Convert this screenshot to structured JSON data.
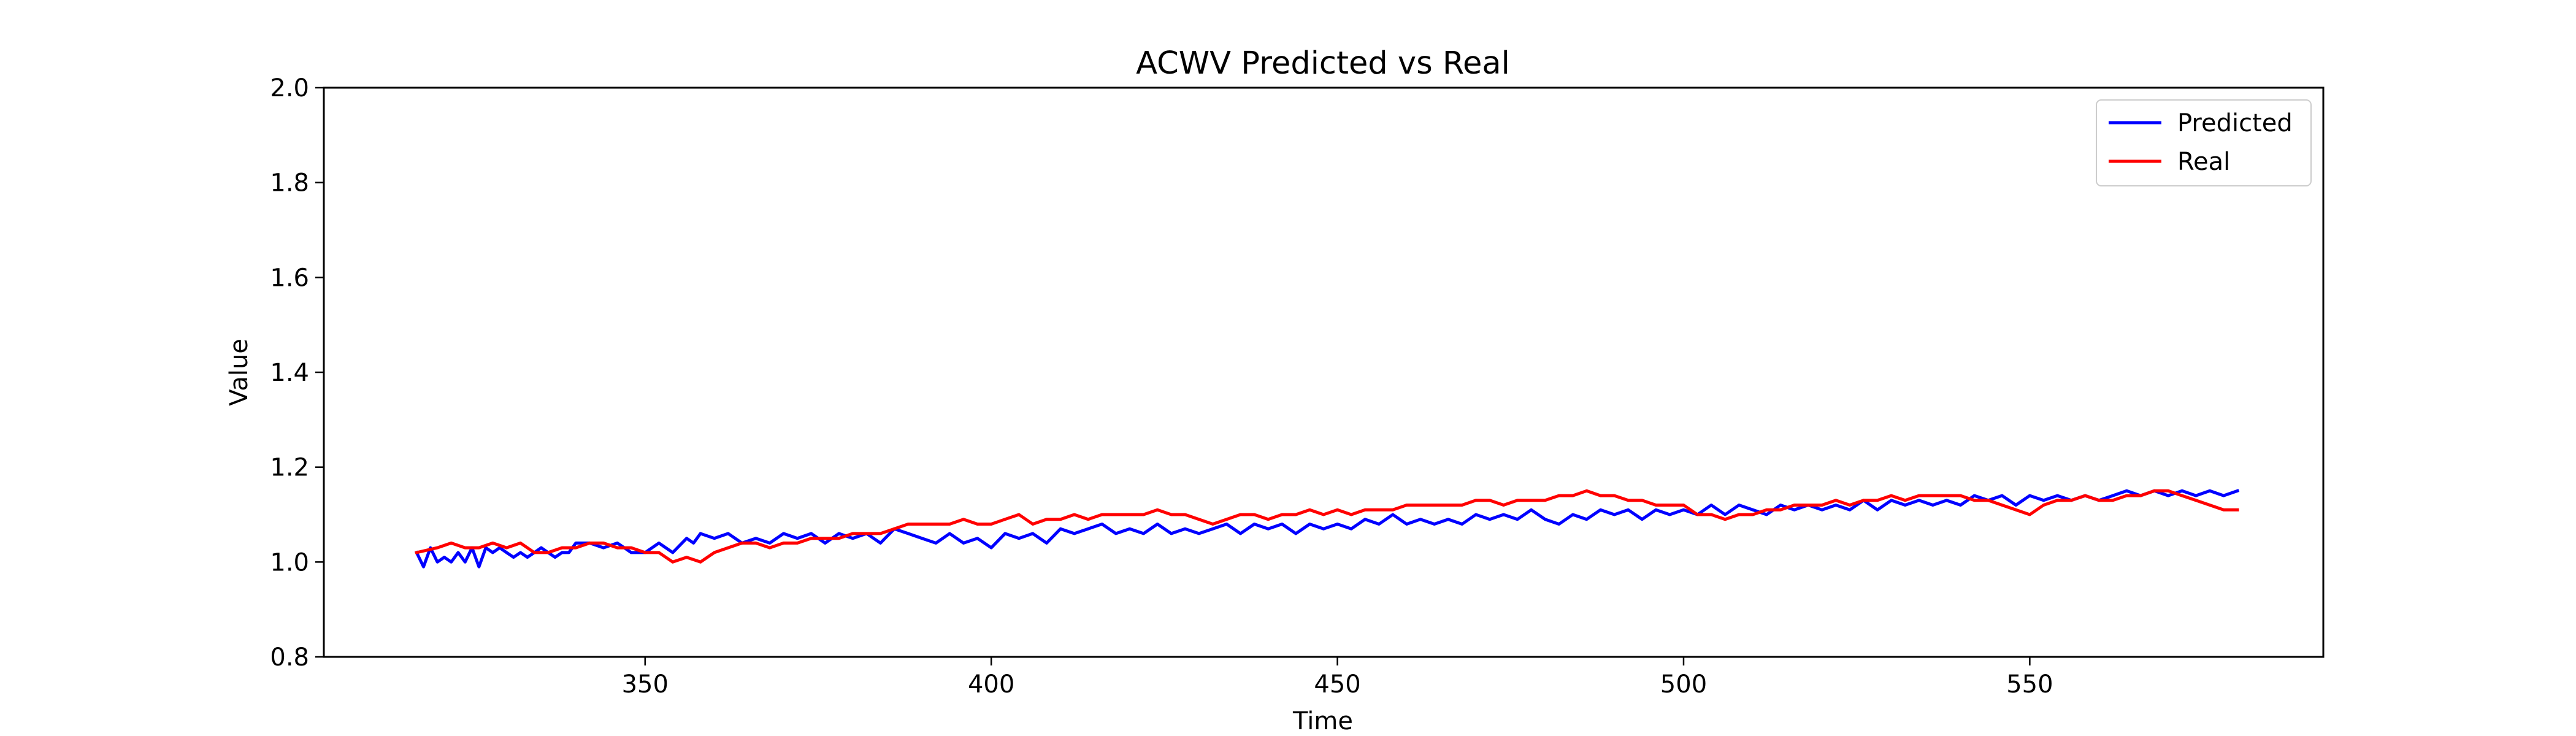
{
  "chart_data": {
    "type": "line",
    "title": "ACWV Predicted vs Real",
    "xlabel": "Time",
    "ylabel": "Value",
    "xlim": [
      303.6,
      592.4
    ],
    "ylim": [
      0.8,
      2.0
    ],
    "xticks": [
      350,
      400,
      450,
      500,
      550
    ],
    "yticks": [
      0.8,
      1.0,
      1.2,
      1.4,
      1.6,
      1.8,
      2.0
    ],
    "xtick_labels": [
      "350",
      "400",
      "450",
      "500",
      "550"
    ],
    "ytick_labels": [
      "0.8",
      "1.0",
      "1.2",
      "1.4",
      "1.6",
      "1.8",
      "2.0"
    ],
    "grid": false,
    "legend_position": "top-right",
    "series": [
      {
        "name": "Predicted",
        "color": "#0000ff",
        "x": [
          317,
          318,
          319,
          320,
          321,
          322,
          323,
          324,
          325,
          326,
          327,
          328,
          329,
          330,
          331,
          332,
          333,
          334,
          335,
          336,
          337,
          338,
          339,
          340,
          342,
          344,
          346,
          348,
          350,
          352,
          354,
          356,
          357,
          358,
          360,
          362,
          364,
          366,
          368,
          370,
          372,
          374,
          376,
          378,
          380,
          382,
          384,
          386,
          388,
          390,
          392,
          394,
          396,
          398,
          400,
          402,
          404,
          406,
          408,
          410,
          412,
          414,
          416,
          418,
          420,
          422,
          424,
          426,
          428,
          430,
          432,
          434,
          436,
          438,
          440,
          442,
          444,
          446,
          448,
          450,
          452,
          454,
          456,
          458,
          460,
          462,
          464,
          466,
          468,
          470,
          472,
          474,
          476,
          478,
          480,
          482,
          484,
          486,
          488,
          490,
          492,
          494,
          496,
          498,
          500,
          502,
          504,
          506,
          508,
          510,
          512,
          514,
          516,
          518,
          520,
          522,
          524,
          526,
          528,
          530,
          532,
          534,
          536,
          538,
          540,
          542,
          544,
          546,
          548,
          550,
          552,
          554,
          556,
          558,
          560,
          562,
          564,
          566,
          568,
          570,
          572,
          574,
          576,
          578,
          580
        ],
        "y": [
          1.02,
          0.99,
          1.03,
          1.0,
          1.01,
          1.0,
          1.02,
          1.0,
          1.03,
          0.99,
          1.03,
          1.02,
          1.03,
          1.02,
          1.01,
          1.02,
          1.01,
          1.02,
          1.03,
          1.02,
          1.01,
          1.02,
          1.02,
          1.04,
          1.04,
          1.03,
          1.04,
          1.02,
          1.02,
          1.04,
          1.02,
          1.05,
          1.04,
          1.06,
          1.05,
          1.06,
          1.04,
          1.05,
          1.04,
          1.06,
          1.05,
          1.06,
          1.04,
          1.06,
          1.05,
          1.06,
          1.04,
          1.07,
          1.06,
          1.05,
          1.04,
          1.06,
          1.04,
          1.05,
          1.03,
          1.06,
          1.05,
          1.06,
          1.04,
          1.07,
          1.06,
          1.07,
          1.08,
          1.06,
          1.07,
          1.06,
          1.08,
          1.06,
          1.07,
          1.06,
          1.07,
          1.08,
          1.06,
          1.08,
          1.07,
          1.08,
          1.06,
          1.08,
          1.07,
          1.08,
          1.07,
          1.09,
          1.08,
          1.1,
          1.08,
          1.09,
          1.08,
          1.09,
          1.08,
          1.1,
          1.09,
          1.1,
          1.09,
          1.11,
          1.09,
          1.08,
          1.1,
          1.09,
          1.11,
          1.1,
          1.11,
          1.09,
          1.11,
          1.1,
          1.11,
          1.1,
          1.12,
          1.1,
          1.12,
          1.11,
          1.1,
          1.12,
          1.11,
          1.12,
          1.11,
          1.12,
          1.11,
          1.13,
          1.11,
          1.13,
          1.12,
          1.13,
          1.12,
          1.13,
          1.12,
          1.14,
          1.13,
          1.14,
          1.12,
          1.14,
          1.13,
          1.14,
          1.13,
          1.14,
          1.13,
          1.14,
          1.15,
          1.14,
          1.15,
          1.14,
          1.15,
          1.14,
          1.15,
          1.14,
          1.15
        ]
      },
      {
        "name": "Real",
        "color": "#ff0000",
        "x": [
          317,
          320,
          322,
          324,
          326,
          328,
          330,
          332,
          334,
          336,
          338,
          340,
          342,
          344,
          346,
          348,
          350,
          352,
          354,
          356,
          358,
          360,
          362,
          364,
          366,
          368,
          370,
          372,
          374,
          376,
          378,
          380,
          382,
          384,
          386,
          388,
          390,
          392,
          394,
          396,
          398,
          400,
          402,
          404,
          406,
          408,
          410,
          412,
          414,
          416,
          418,
          420,
          422,
          424,
          426,
          428,
          430,
          432,
          434,
          436,
          438,
          440,
          442,
          444,
          446,
          448,
          450,
          452,
          454,
          456,
          458,
          460,
          462,
          464,
          466,
          468,
          470,
          472,
          474,
          476,
          478,
          480,
          482,
          484,
          486,
          488,
          490,
          492,
          494,
          496,
          498,
          500,
          502,
          504,
          506,
          508,
          510,
          512,
          514,
          516,
          518,
          520,
          522,
          524,
          526,
          528,
          530,
          532,
          534,
          536,
          538,
          540,
          542,
          544,
          546,
          548,
          550,
          552,
          554,
          556,
          558,
          560,
          562,
          564,
          566,
          568,
          570,
          572,
          574,
          576,
          578,
          580
        ],
        "y": [
          1.02,
          1.03,
          1.04,
          1.03,
          1.03,
          1.04,
          1.03,
          1.04,
          1.02,
          1.02,
          1.03,
          1.03,
          1.04,
          1.04,
          1.03,
          1.03,
          1.02,
          1.02,
          1.0,
          1.01,
          1.0,
          1.02,
          1.03,
          1.04,
          1.04,
          1.03,
          1.04,
          1.04,
          1.05,
          1.05,
          1.05,
          1.06,
          1.06,
          1.06,
          1.07,
          1.08,
          1.08,
          1.08,
          1.08,
          1.09,
          1.08,
          1.08,
          1.09,
          1.1,
          1.08,
          1.09,
          1.09,
          1.1,
          1.09,
          1.1,
          1.1,
          1.1,
          1.1,
          1.11,
          1.1,
          1.1,
          1.09,
          1.08,
          1.09,
          1.1,
          1.1,
          1.09,
          1.1,
          1.1,
          1.11,
          1.1,
          1.11,
          1.1,
          1.11,
          1.11,
          1.11,
          1.12,
          1.12,
          1.12,
          1.12,
          1.12,
          1.13,
          1.13,
          1.12,
          1.13,
          1.13,
          1.13,
          1.14,
          1.14,
          1.15,
          1.14,
          1.14,
          1.13,
          1.13,
          1.12,
          1.12,
          1.12,
          1.1,
          1.1,
          1.09,
          1.1,
          1.1,
          1.11,
          1.11,
          1.12,
          1.12,
          1.12,
          1.13,
          1.12,
          1.13,
          1.13,
          1.14,
          1.13,
          1.14,
          1.14,
          1.14,
          1.14,
          1.13,
          1.13,
          1.12,
          1.11,
          1.1,
          1.12,
          1.13,
          1.13,
          1.14,
          1.13,
          1.13,
          1.14,
          1.14,
          1.15,
          1.15,
          1.14,
          1.13,
          1.12,
          1.11,
          1.11
        ]
      }
    ]
  }
}
